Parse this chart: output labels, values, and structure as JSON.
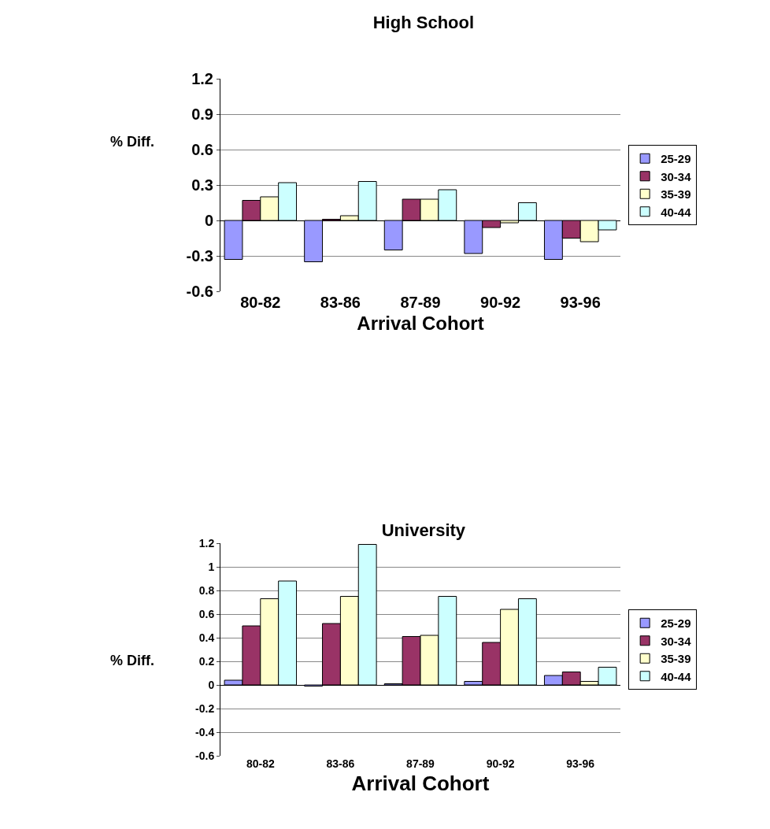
{
  "chart_data": [
    {
      "type": "bar",
      "title": "High School",
      "xlabel": "Arrival Cohort",
      "ylabel": "% Diff.",
      "categories": [
        "80-82",
        "83-86",
        "87-89",
        "90-92",
        "93-96"
      ],
      "series": [
        {
          "name": "25-29",
          "color": "#9999ff",
          "values": [
            -0.33,
            -0.35,
            -0.25,
            -0.28,
            -0.33
          ]
        },
        {
          "name": "30-34",
          "color": "#993366",
          "values": [
            0.17,
            0.01,
            0.18,
            -0.06,
            -0.15
          ]
        },
        {
          "name": "35-39",
          "color": "#ffffcc",
          "values": [
            0.2,
            0.04,
            0.18,
            -0.02,
            -0.18
          ]
        },
        {
          "name": "40-44",
          "color": "#ccffff",
          "values": [
            0.32,
            0.33,
            0.26,
            0.15,
            -0.08
          ]
        }
      ],
      "ylim": [
        -0.6,
        1.2
      ],
      "yticks": [
        -0.6,
        -0.3,
        0,
        0.3,
        0.6,
        0.9,
        1.2
      ],
      "grid": "y",
      "legend": "right"
    },
    {
      "type": "bar",
      "title": "University",
      "xlabel": "Arrival Cohort",
      "ylabel": "% Diff.",
      "categories": [
        "80-82",
        "83-86",
        "87-89",
        "90-92",
        "93-96"
      ],
      "series": [
        {
          "name": "25-29",
          "color": "#9999ff",
          "values": [
            0.04,
            -0.01,
            0.01,
            0.03,
            0.08
          ]
        },
        {
          "name": "30-34",
          "color": "#993366",
          "values": [
            0.5,
            0.52,
            0.41,
            0.36,
            0.11
          ]
        },
        {
          "name": "35-39",
          "color": "#ffffcc",
          "values": [
            0.73,
            0.75,
            0.42,
            0.64,
            0.03
          ]
        },
        {
          "name": "40-44",
          "color": "#ccffff",
          "values": [
            0.88,
            1.19,
            0.75,
            0.73,
            0.15
          ]
        }
      ],
      "ylim": [
        -0.6,
        1.2
      ],
      "yticks": [
        -0.6,
        -0.4,
        -0.2,
        0,
        0.2,
        0.4,
        0.6,
        0.8,
        1,
        1.2
      ],
      "grid": "y",
      "legend": "right"
    }
  ]
}
